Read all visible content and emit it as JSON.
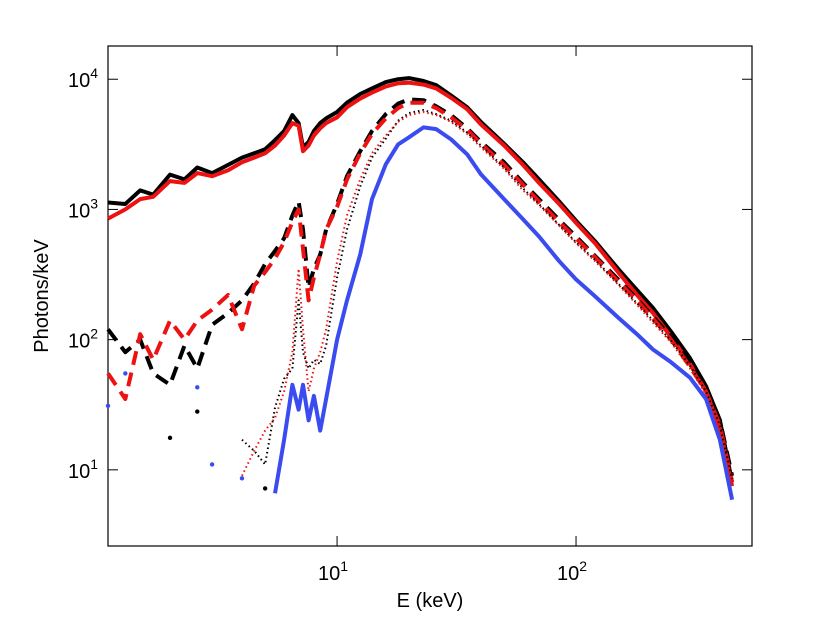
{
  "chart_data": {
    "type": "line",
    "xlabel": "E (keV)",
    "ylabel": "Photons/keV",
    "xscale": "log",
    "yscale": "log",
    "xlim": [
      1.1,
      545
    ],
    "ylim": [
      2.6,
      18000
    ],
    "xticks": [
      {
        "value": 10,
        "label": "10^1"
      },
      {
        "value": 100,
        "label": "10^2"
      }
    ],
    "yticks": [
      {
        "value": 10,
        "label": "10^1"
      },
      {
        "value": 100,
        "label": "10^2"
      },
      {
        "value": 1000,
        "label": "10^3"
      },
      {
        "value": 10000,
        "label": "10^4"
      }
    ],
    "x": [
      1.1,
      1.3,
      1.5,
      1.7,
      2,
      2.3,
      2.6,
      3,
      3.5,
      4,
      4.5,
      5,
      5.5,
      6,
      6.5,
      6.9,
      7.2,
      7.6,
      8,
      8.5,
      9,
      10,
      11,
      12.5,
      14,
      16,
      18,
      20,
      23,
      26,
      30,
      35,
      40,
      50,
      60,
      70,
      85,
      100,
      120,
      150,
      180,
      210,
      250,
      300,
      350,
      400,
      450
    ],
    "series": [
      {
        "color": "#000000",
        "style": "solid",
        "values": [
          1130,
          1100,
          1400,
          1300,
          1850,
          1700,
          2100,
          1900,
          2200,
          2500,
          2700,
          2900,
          3400,
          4000,
          5300,
          4600,
          3000,
          3300,
          4000,
          4600,
          5000,
          5600,
          6600,
          7700,
          8500,
          9500,
          10000,
          10200,
          9700,
          9000,
          7500,
          6100,
          4700,
          3200,
          2300,
          1700,
          1150,
          820,
          570,
          350,
          240,
          175,
          115,
          72,
          44,
          24,
          8
        ]
      },
      {
        "color": "#ee1111",
        "style": "solid",
        "values": [
          850,
          1000,
          1200,
          1250,
          1650,
          1600,
          1900,
          1800,
          2000,
          2300,
          2500,
          2700,
          3100,
          3700,
          4600,
          4400,
          2800,
          3100,
          3700,
          4200,
          4600,
          5100,
          6100,
          7100,
          7900,
          8800,
          9300,
          9400,
          9100,
          8500,
          7200,
          5900,
          4500,
          3100,
          2200,
          1600,
          1100,
          790,
          550,
          330,
          220,
          160,
          105,
          65,
          40,
          21,
          7.5
        ]
      },
      {
        "color": "#000000",
        "style": "dashed",
        "values": [
          120,
          80,
          100,
          55,
          45,
          90,
          60,
          130,
          160,
          200,
          270,
          380,
          480,
          600,
          900,
          1150,
          700,
          250,
          350,
          450,
          700,
          1100,
          1800,
          2800,
          4000,
          5400,
          6500,
          7000,
          6900,
          6200,
          5300,
          4200,
          3300,
          2300,
          1600,
          1200,
          830,
          620,
          440,
          290,
          205,
          150,
          105,
          68,
          43,
          24,
          9
        ]
      },
      {
        "color": "#ee1111",
        "style": "dashed",
        "values": [
          55,
          35,
          110,
          70,
          140,
          100,
          140,
          170,
          220,
          120,
          260,
          330,
          420,
          560,
          800,
          1000,
          500,
          200,
          300,
          450,
          700,
          1050,
          1700,
          2700,
          3800,
          5000,
          6000,
          6600,
          6600,
          6000,
          5100,
          4100,
          3200,
          2200,
          1550,
          1150,
          800,
          600,
          430,
          280,
          200,
          145,
          100,
          62,
          40,
          22,
          8
        ]
      },
      {
        "color": "#000000",
        "style": "dotted",
        "values": [
          null,
          null,
          null,
          null,
          null,
          null,
          null,
          null,
          null,
          17,
          14,
          11,
          30,
          50,
          60,
          200,
          80,
          60,
          70,
          65,
          90,
          300,
          700,
          1500,
          2500,
          3500,
          4800,
          5500,
          5800,
          5400,
          4800,
          3900,
          3100,
          2100,
          1450,
          1100,
          760,
          560,
          410,
          270,
          190,
          140,
          98,
          63,
          40,
          22,
          8.5
        ]
      },
      {
        "color": "#ee1111",
        "style": "dotted",
        "values": [
          null,
          null,
          null,
          null,
          null,
          null,
          null,
          null,
          null,
          9,
          14,
          20,
          25,
          40,
          80,
          350,
          120,
          40,
          60,
          80,
          120,
          400,
          900,
          1700,
          2700,
          3700,
          4700,
          5300,
          5600,
          5300,
          4700,
          3800,
          3000,
          2050,
          1400,
          1080,
          750,
          550,
          400,
          265,
          185,
          135,
          95,
          60,
          38,
          20,
          8
        ]
      },
      {
        "color": "#3a4cf0",
        "style": "solid",
        "values": [
          null,
          null,
          null,
          null,
          null,
          null,
          null,
          null,
          null,
          null,
          null,
          null,
          6.6,
          17,
          45,
          29,
          45,
          24,
          37,
          20,
          35,
          100,
          200,
          450,
          1200,
          2220,
          3160,
          3580,
          4270,
          4140,
          3450,
          2650,
          1860,
          1200,
          840,
          620,
          400,
          290,
          215,
          148,
          110,
          84,
          67,
          51,
          35,
          17,
          5.9
        ]
      },
      {
        "color": "#3a4cf0",
        "style": "dots",
        "values": [
          31,
          55,
          null,
          null,
          null,
          null,
          43,
          11,
          null,
          8.6,
          null,
          null,
          null,
          null,
          null,
          null,
          null,
          null,
          null,
          null,
          null,
          null,
          null,
          null,
          null,
          null,
          null,
          null,
          null,
          null,
          null,
          null,
          null,
          null,
          null,
          null,
          null,
          null,
          null,
          null,
          null,
          null,
          null,
          null,
          null,
          null,
          null
        ]
      },
      {
        "color": "#000000",
        "style": "dots",
        "values": [
          null,
          null,
          null,
          null,
          17.6,
          null,
          28,
          null,
          null,
          null,
          null,
          7.2,
          null,
          null,
          null,
          null,
          null,
          null,
          null,
          null,
          null,
          null,
          null,
          null,
          null,
          null,
          null,
          null,
          null,
          null,
          null,
          null,
          null,
          null,
          null,
          null,
          null,
          null,
          null,
          null,
          null,
          null,
          null,
          null,
          null,
          null,
          null
        ]
      }
    ]
  }
}
